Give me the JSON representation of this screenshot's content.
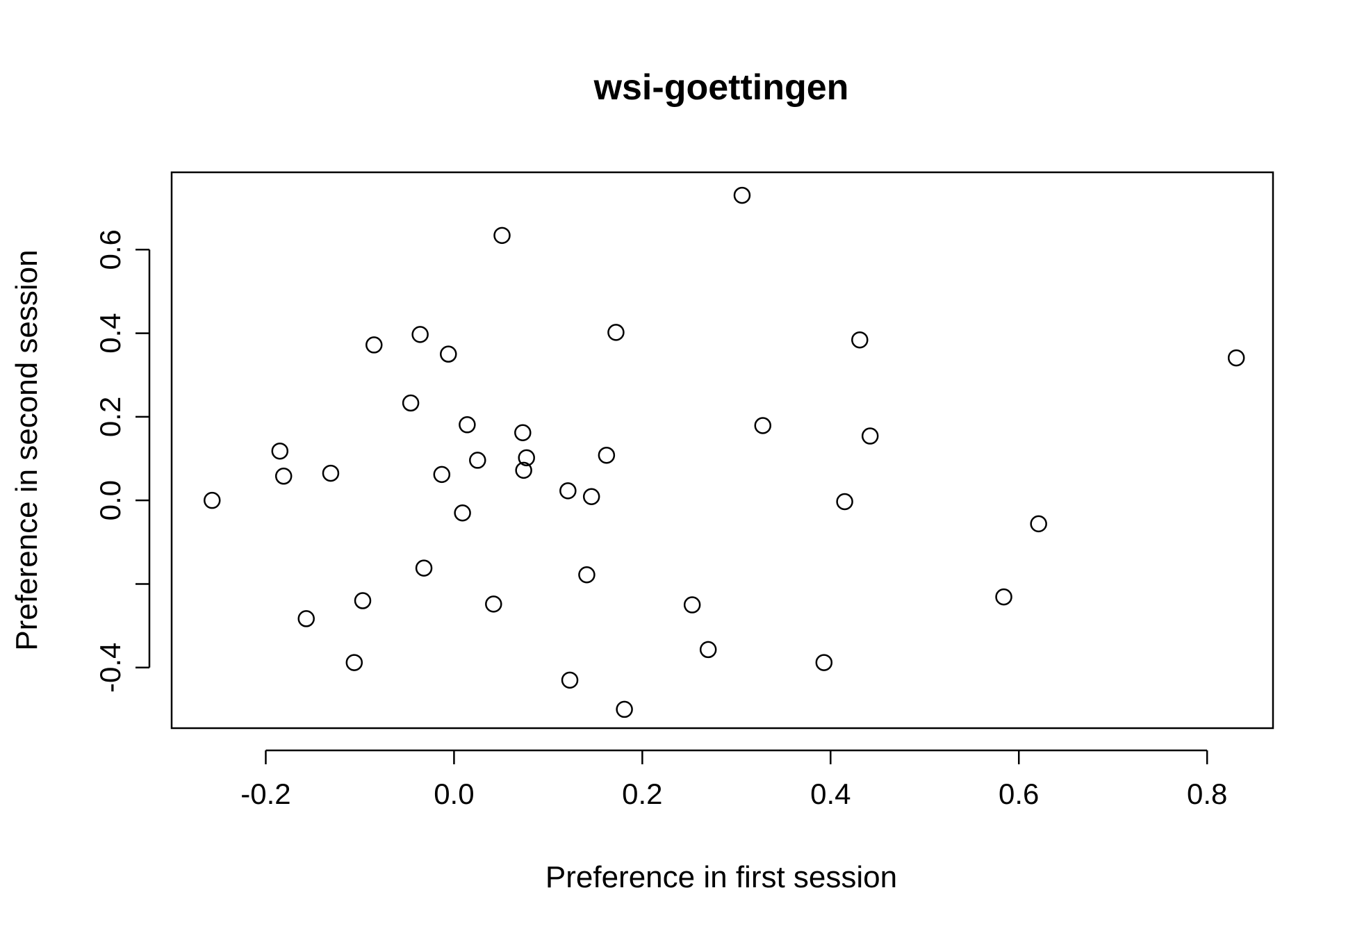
{
  "chart_data": {
    "type": "scatter",
    "title": "wsi-goettingen",
    "xlabel": "Preference in first session",
    "ylabel": "Preference in second session",
    "xlim": [
      -0.3,
      0.87
    ],
    "ylim": [
      -0.545,
      0.785
    ],
    "xticks": [
      -0.2,
      0.0,
      0.2,
      0.4,
      0.6,
      0.8
    ],
    "xtick_labels": [
      "-0.2",
      "0.0",
      "0.2",
      "0.4",
      "0.6",
      "0.8"
    ],
    "yticks": [
      -0.4,
      -0.2,
      0.0,
      0.2,
      0.4,
      0.6
    ],
    "ytick_labels": [
      "-0.4",
      "",
      "0.0",
      "0.2",
      "0.4",
      "0.6"
    ],
    "grid": false,
    "legend": "none",
    "points": [
      {
        "x": -0.257,
        "y": 0.0
      },
      {
        "x": -0.185,
        "y": 0.118
      },
      {
        "x": -0.181,
        "y": 0.058
      },
      {
        "x": -0.157,
        "y": -0.283
      },
      {
        "x": -0.131,
        "y": 0.065
      },
      {
        "x": -0.106,
        "y": -0.388
      },
      {
        "x": -0.097,
        "y": -0.24
      },
      {
        "x": -0.085,
        "y": 0.372
      },
      {
        "x": -0.046,
        "y": 0.233
      },
      {
        "x": -0.036,
        "y": 0.397
      },
      {
        "x": -0.032,
        "y": -0.162
      },
      {
        "x": -0.013,
        "y": 0.062
      },
      {
        "x": -0.006,
        "y": 0.35
      },
      {
        "x": 0.009,
        "y": -0.03
      },
      {
        "x": 0.014,
        "y": 0.181
      },
      {
        "x": 0.025,
        "y": 0.096
      },
      {
        "x": 0.042,
        "y": -0.248
      },
      {
        "x": 0.051,
        "y": 0.634
      },
      {
        "x": 0.073,
        "y": 0.162
      },
      {
        "x": 0.074,
        "y": 0.072
      },
      {
        "x": 0.077,
        "y": 0.102
      },
      {
        "x": 0.121,
        "y": 0.023
      },
      {
        "x": 0.123,
        "y": -0.43
      },
      {
        "x": 0.141,
        "y": -0.178
      },
      {
        "x": 0.146,
        "y": 0.009
      },
      {
        "x": 0.162,
        "y": 0.108
      },
      {
        "x": 0.172,
        "y": 0.402
      },
      {
        "x": 0.181,
        "y": -0.5
      },
      {
        "x": 0.253,
        "y": -0.25
      },
      {
        "x": 0.27,
        "y": -0.357
      },
      {
        "x": 0.306,
        "y": 0.73
      },
      {
        "x": 0.328,
        "y": 0.179
      },
      {
        "x": 0.393,
        "y": -0.388
      },
      {
        "x": 0.415,
        "y": -0.003
      },
      {
        "x": 0.431,
        "y": 0.384
      },
      {
        "x": 0.442,
        "y": 0.154
      },
      {
        "x": 0.584,
        "y": -0.231
      },
      {
        "x": 0.621,
        "y": -0.056
      },
      {
        "x": 0.831,
        "y": 0.341
      }
    ]
  }
}
